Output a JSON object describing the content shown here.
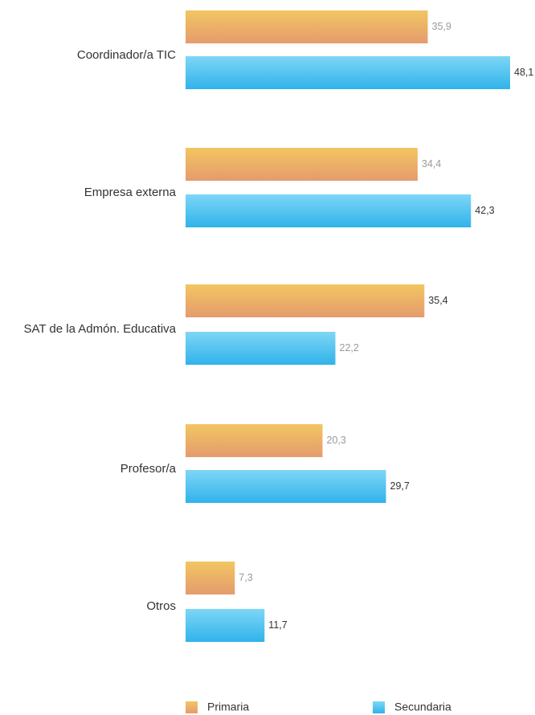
{
  "chart_data": {
    "type": "bar",
    "orientation": "horizontal",
    "categories": [
      "Coordinador/a TIC",
      "Empresa externa",
      "SAT de la Admón. Educativa",
      "Profesor/a",
      "Otros"
    ],
    "series": [
      {
        "name": "Primaria",
        "values": [
          35.9,
          34.4,
          35.4,
          20.3,
          7.3
        ],
        "value_labels": [
          "35,9",
          "34,4",
          "35,4",
          "20,3",
          "7,3"
        ]
      },
      {
        "name": "Secundaria",
        "values": [
          48.1,
          42.3,
          22.2,
          29.7,
          11.7
        ],
        "value_labels": [
          "48,1",
          "42,3",
          "22,2",
          "29,7",
          "11,7"
        ]
      }
    ],
    "xlim": [
      0,
      48.1
    ],
    "grid": false,
    "legend_position": "bottom",
    "colors": {
      "primaria_top": "#f2c661",
      "primaria_bottom": "#e59b6e",
      "secundaria_top": "#7fd6f6",
      "secundaria_bottom": "#2fb3ea",
      "label_gray": "#9a9a9a",
      "label_dark": "#333333"
    }
  }
}
